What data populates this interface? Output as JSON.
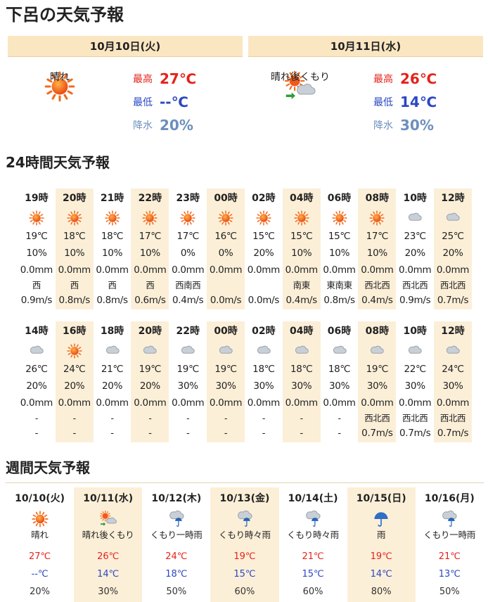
{
  "page_title": "下呂の天気予報",
  "daily": [
    {
      "date": "10月10日(火)",
      "icon": "sun-icon",
      "weather": "晴れ",
      "high_label": "最高",
      "high": "27℃",
      "low_label": "最低",
      "low": "--℃",
      "precip_label": "降水",
      "precip": "20%"
    },
    {
      "date": "10月11日(水)",
      "icon": "sun-then-cloud-icon",
      "weather": "晴れ後くもり",
      "high_label": "最高",
      "high": "26℃",
      "low_label": "最低",
      "low": "14℃",
      "precip_label": "降水",
      "precip": "30%"
    }
  ],
  "hourly_title": "24時間天気予報",
  "hourly_rows": [
    [
      {
        "hour": "19時",
        "icon": "sun-icon",
        "temp": "19℃",
        "prob": "10%",
        "mm": "0.0mm",
        "wd": "西",
        "ws": "0.9m/s",
        "shade": false
      },
      {
        "hour": "20時",
        "icon": "sun-icon",
        "temp": "18℃",
        "prob": "10%",
        "mm": "0.0mm",
        "wd": "西",
        "ws": "0.8m/s",
        "shade": true
      },
      {
        "hour": "21時",
        "icon": "sun-icon",
        "temp": "18℃",
        "prob": "10%",
        "mm": "0.0mm",
        "wd": "西",
        "ws": "0.8m/s",
        "shade": false
      },
      {
        "hour": "22時",
        "icon": "sun-icon",
        "temp": "17℃",
        "prob": "10%",
        "mm": "0.0mm",
        "wd": "西",
        "ws": "0.6m/s",
        "shade": true
      },
      {
        "hour": "23時",
        "icon": "sun-icon",
        "temp": "17℃",
        "prob": "0%",
        "mm": "0.0mm",
        "wd": "西南西",
        "ws": "0.4m/s",
        "shade": false
      },
      {
        "hour": "00時",
        "icon": "sun-icon",
        "temp": "16℃",
        "prob": "0%",
        "mm": "0.0mm",
        "wd": "",
        "ws": "0.0m/s",
        "shade": true
      },
      {
        "hour": "02時",
        "icon": "sun-icon",
        "temp": "15℃",
        "prob": "20%",
        "mm": "0.0mm",
        "wd": "",
        "ws": "0.0m/s",
        "shade": false
      },
      {
        "hour": "04時",
        "icon": "sun-icon",
        "temp": "15℃",
        "prob": "10%",
        "mm": "0.0mm",
        "wd": "南東",
        "ws": "0.4m/s",
        "shade": true
      },
      {
        "hour": "06時",
        "icon": "sun-icon",
        "temp": "15℃",
        "prob": "10%",
        "mm": "0.0mm",
        "wd": "東南東",
        "ws": "0.8m/s",
        "shade": false
      },
      {
        "hour": "08時",
        "icon": "sun-icon",
        "temp": "17℃",
        "prob": "10%",
        "mm": "0.0mm",
        "wd": "西北西",
        "ws": "0.4m/s",
        "shade": true
      },
      {
        "hour": "10時",
        "icon": "cloud-icon",
        "temp": "23℃",
        "prob": "20%",
        "mm": "0.0mm",
        "wd": "西北西",
        "ws": "0.9m/s",
        "shade": false
      },
      {
        "hour": "12時",
        "icon": "cloud-icon",
        "temp": "25℃",
        "prob": "20%",
        "mm": "0.0mm",
        "wd": "西北西",
        "ws": "0.7m/s",
        "shade": true
      }
    ],
    [
      {
        "hour": "14時",
        "icon": "cloud-icon",
        "temp": "26℃",
        "prob": "20%",
        "mm": "0.0mm",
        "wd": "-",
        "ws": "-",
        "shade": false
      },
      {
        "hour": "16時",
        "icon": "sun-icon",
        "temp": "24℃",
        "prob": "20%",
        "mm": "0.0mm",
        "wd": "-",
        "ws": "-",
        "shade": true
      },
      {
        "hour": "18時",
        "icon": "cloud-icon",
        "temp": "21℃",
        "prob": "20%",
        "mm": "0.0mm",
        "wd": "-",
        "ws": "-",
        "shade": false
      },
      {
        "hour": "20時",
        "icon": "cloud-icon",
        "temp": "19℃",
        "prob": "20%",
        "mm": "0.0mm",
        "wd": "-",
        "ws": "-",
        "shade": true
      },
      {
        "hour": "22時",
        "icon": "cloud-icon",
        "temp": "19℃",
        "prob": "30%",
        "mm": "0.0mm",
        "wd": "-",
        "ws": "-",
        "shade": false
      },
      {
        "hour": "00時",
        "icon": "cloud-icon",
        "temp": "19℃",
        "prob": "30%",
        "mm": "0.0mm",
        "wd": "-",
        "ws": "-",
        "shade": true
      },
      {
        "hour": "02時",
        "icon": "cloud-icon",
        "temp": "18℃",
        "prob": "30%",
        "mm": "0.0mm",
        "wd": "-",
        "ws": "-",
        "shade": false
      },
      {
        "hour": "04時",
        "icon": "cloud-icon",
        "temp": "18℃",
        "prob": "30%",
        "mm": "0.0mm",
        "wd": "-",
        "ws": "-",
        "shade": true
      },
      {
        "hour": "06時",
        "icon": "cloud-icon",
        "temp": "18℃",
        "prob": "30%",
        "mm": "0.0mm",
        "wd": "-",
        "ws": "-",
        "shade": false
      },
      {
        "hour": "08時",
        "icon": "cloud-icon",
        "temp": "19℃",
        "prob": "30%",
        "mm": "0.0mm",
        "wd": "西北西",
        "ws": "0.7m/s",
        "shade": true
      },
      {
        "hour": "10時",
        "icon": "cloud-icon",
        "temp": "22℃",
        "prob": "30%",
        "mm": "0.0mm",
        "wd": "西北西",
        "ws": "0.7m/s",
        "shade": false
      },
      {
        "hour": "12時",
        "icon": "cloud-icon",
        "temp": "24℃",
        "prob": "30%",
        "mm": "0.0mm",
        "wd": "西北西",
        "ws": "0.7m/s",
        "shade": true
      }
    ]
  ],
  "weekly_title": "週間天気予報",
  "weekly": [
    {
      "date": "10/10(火)",
      "icon": "sun-icon",
      "weather": "晴れ",
      "high": "27℃",
      "low": "--℃",
      "prob": "20%",
      "shade": false
    },
    {
      "date": "10/11(水)",
      "icon": "sun-then-cloud-icon",
      "weather": "晴れ後くもり",
      "high": "26℃",
      "low": "14℃",
      "prob": "30%",
      "shade": true
    },
    {
      "date": "10/12(木)",
      "icon": "cloud-rain-icon",
      "weather": "くもり一時雨",
      "high": "24℃",
      "low": "18℃",
      "prob": "50%",
      "shade": false
    },
    {
      "date": "10/13(金)",
      "icon": "cloud-rain-icon",
      "weather": "くもり時々雨",
      "high": "19℃",
      "low": "15℃",
      "prob": "60%",
      "shade": true
    },
    {
      "date": "10/14(土)",
      "icon": "cloud-rain-icon",
      "weather": "くもり時々雨",
      "high": "21℃",
      "low": "15℃",
      "prob": "60%",
      "shade": false
    },
    {
      "date": "10/15(日)",
      "icon": "umbrella-icon",
      "weather": "雨",
      "high": "19℃",
      "low": "14℃",
      "prob": "80%",
      "shade": true
    },
    {
      "date": "10/16(月)",
      "icon": "cloud-rain-icon",
      "weather": "くもり一時雨",
      "high": "21℃",
      "low": "13℃",
      "prob": "50%",
      "shade": false
    }
  ],
  "colors": {
    "shade": "#fcefd8",
    "header": "#fbe6c2",
    "high": "#e4231c",
    "low": "#2b47c2",
    "precip": "#6c8fbd"
  }
}
